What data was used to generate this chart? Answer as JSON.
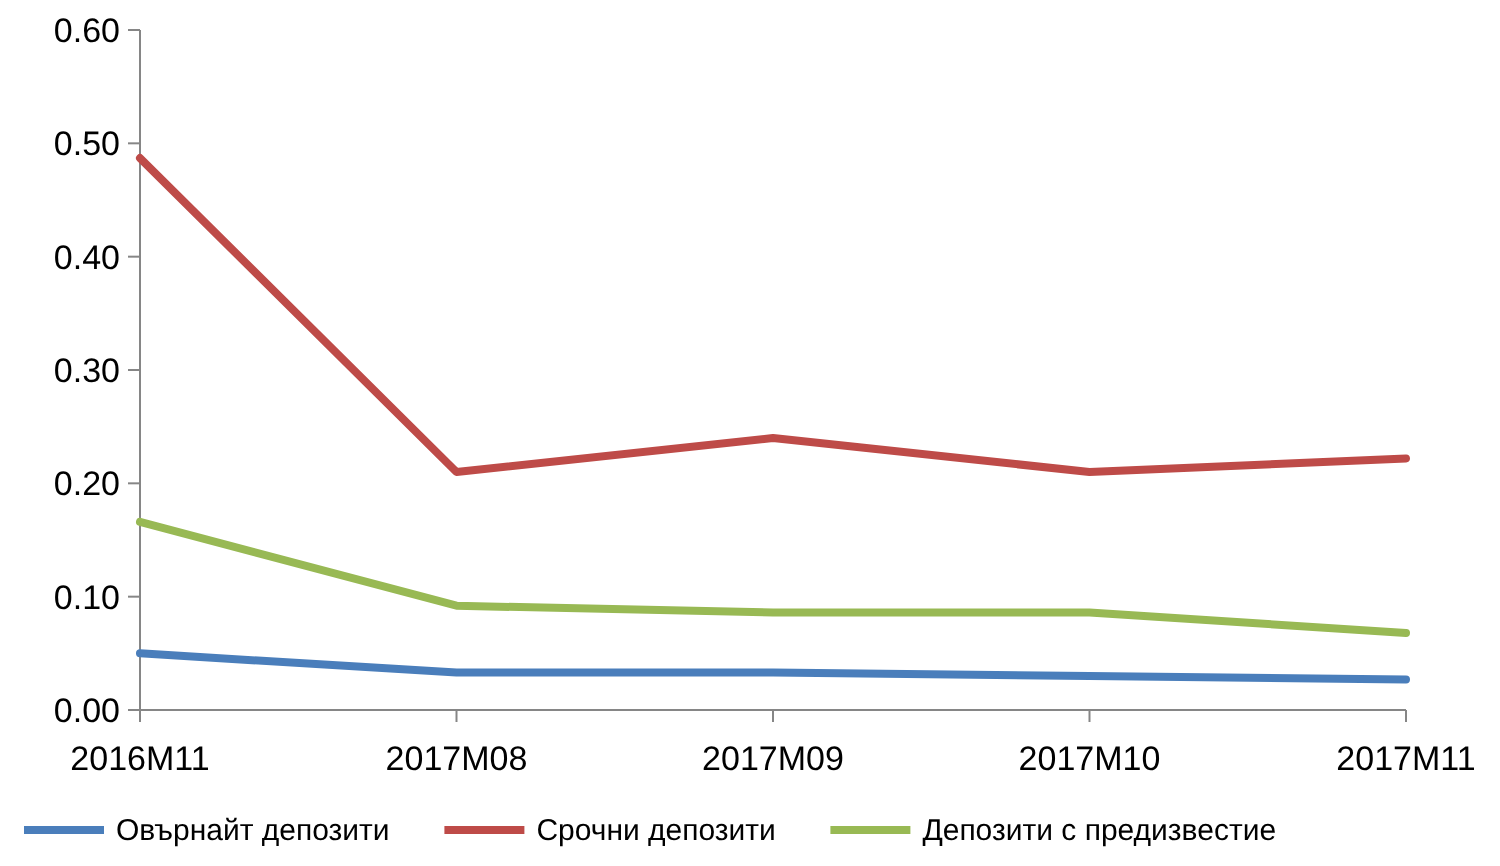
{
  "chart_data": {
    "type": "line",
    "categories": [
      "2016M11",
      "2017M08",
      "2017M09",
      "2017M10",
      "2017M11"
    ],
    "series": [
      {
        "name": "Овърнайт депозити",
        "color": "#4a7ebb",
        "values": [
          0.05,
          0.033,
          0.033,
          0.03,
          0.027
        ]
      },
      {
        "name": "Срочни депозити",
        "color": "#be4b48",
        "values": [
          0.487,
          0.21,
          0.24,
          0.21,
          0.222
        ]
      },
      {
        "name": "Депозити с предизвестие",
        "color": "#98b954",
        "values": [
          0.166,
          0.092,
          0.086,
          0.086,
          0.068
        ]
      }
    ],
    "ylim": [
      0,
      0.6
    ],
    "yticks": [
      {
        "value": 0,
        "label": "0.00"
      },
      {
        "value": 0.1,
        "label": "0.10"
      },
      {
        "value": 0.2,
        "label": "0.20"
      },
      {
        "value": 0.3,
        "label": "0.30"
      },
      {
        "value": 0.4,
        "label": "0.40"
      },
      {
        "value": 0.5,
        "label": "0.50"
      },
      {
        "value": 0.6,
        "label": "0.60"
      }
    ],
    "grid": false,
    "legend": "bottom",
    "marker": "none",
    "line_style": "solid"
  }
}
